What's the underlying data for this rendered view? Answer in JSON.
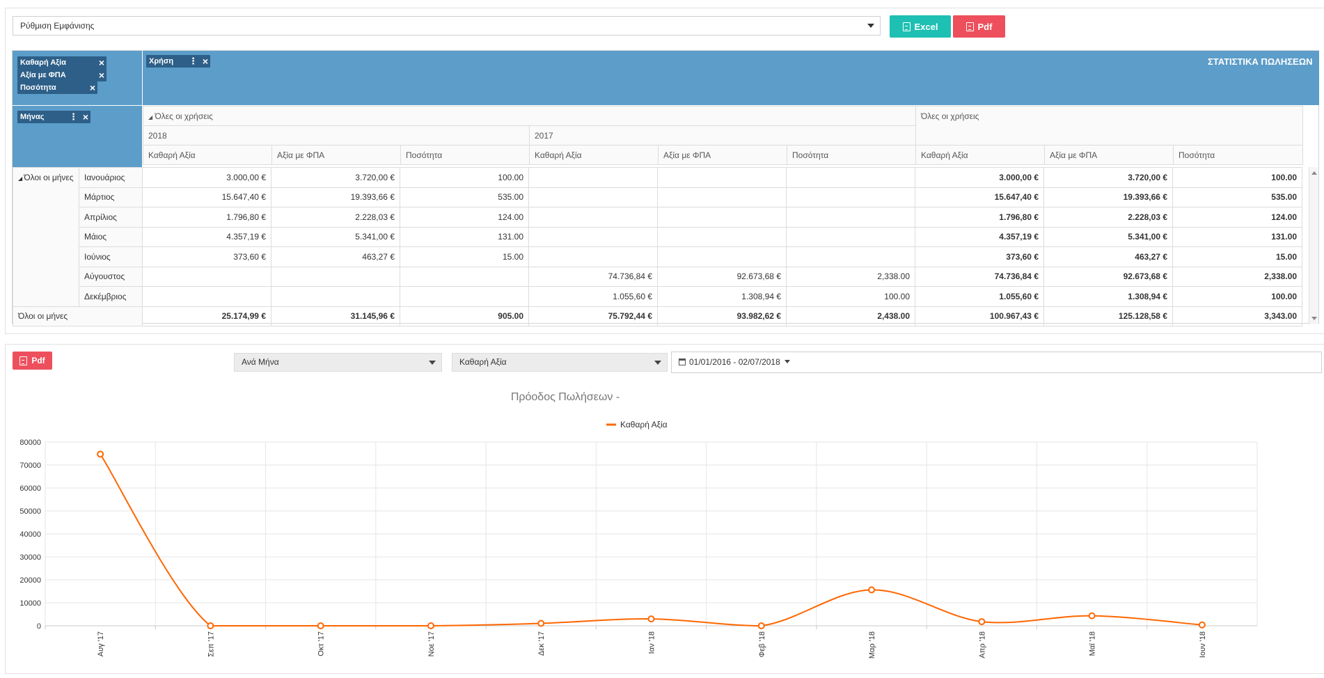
{
  "toolbar": {
    "layout_select": "Ρύθμιση Εμφάνισης",
    "excel_label": "Excel",
    "pdf_label": "Pdf"
  },
  "pivot": {
    "title": "ΣΤΑΤΙΣΤΙΚΑ ΠΩΛΗΣΕΩΝ",
    "data_fields": [
      "Καθαρή Αξία",
      "Αξία με ΦΠΑ",
      "Ποσότητα"
    ],
    "column_field": "Χρήση",
    "row_field": "Μήνας",
    "all_years": "Όλες οι χρήσεις",
    "years": [
      "2018",
      "2017"
    ],
    "measures": [
      "Καθαρή Αξία",
      "Αξία με ΦΠΑ",
      "Ποσότητα"
    ],
    "all_months": "Όλοι οι μήνες",
    "rows": [
      {
        "month": "Ιανουάριος",
        "cells": [
          "3.000,00 €",
          "3.720,00 €",
          "100.00",
          "",
          "",
          "",
          "3.000,00 €",
          "3.720,00 €",
          "100.00"
        ]
      },
      {
        "month": "Μάρτιος",
        "cells": [
          "15.647,40 €",
          "19.393,66 €",
          "535.00",
          "",
          "",
          "",
          "15.647,40 €",
          "19.393,66 €",
          "535.00"
        ]
      },
      {
        "month": "Απρίλιος",
        "cells": [
          "1.796,80 €",
          "2.228,03 €",
          "124.00",
          "",
          "",
          "",
          "1.796,80 €",
          "2.228,03 €",
          "124.00"
        ]
      },
      {
        "month": "Μάιος",
        "cells": [
          "4.357,19 €",
          "5.341,00 €",
          "131.00",
          "",
          "",
          "",
          "4.357,19 €",
          "5.341,00 €",
          "131.00"
        ]
      },
      {
        "month": "Ιούνιος",
        "cells": [
          "373,60 €",
          "463,27 €",
          "15.00",
          "",
          "",
          "",
          "373,60 €",
          "463,27 €",
          "15.00"
        ]
      },
      {
        "month": "Αύγουστος",
        "cells": [
          "",
          "",
          "",
          "74.736,84 €",
          "92.673,68 €",
          "2,338.00",
          "74.736,84 €",
          "92.673,68 €",
          "2,338.00"
        ]
      },
      {
        "month": "Δεκέμβριος",
        "cells": [
          "",
          "",
          "",
          "1.055,60 €",
          "1.308,94 €",
          "100.00",
          "1.055,60 €",
          "1.308,94 €",
          "100.00"
        ]
      }
    ],
    "totals": [
      "25.174,99 €",
      "31.145,96 €",
      "905.00",
      "75.792,44 €",
      "93.982,62 €",
      "2,438.00",
      "100.967,43 €",
      "125.128,58 €",
      "3,343.00"
    ]
  },
  "chart_controls": {
    "pdf_label": "Pdf",
    "group_by": "Ανά Μήνα",
    "metric": "Καθαρή Αξία",
    "date_range": "01/01/2016 - 02/07/2018"
  },
  "colors": {
    "header_blue": "#5c9dc9",
    "chip": "#2d5f88",
    "excel": "#1ec0b3",
    "pdf": "#ee4f5c",
    "series": "#ff6600"
  },
  "chart_data": {
    "type": "line",
    "title": "Πρόοδος Πωλήσεων -",
    "categories": [
      "Αυγ '17",
      "Σεπ '17",
      "Οκτ '17",
      "Νοε '17",
      "Δεκ '17",
      "Ιαν '18",
      "Φεβ '18",
      "Μαρ '18",
      "Απρ '18",
      "Μαϊ '18",
      "Ιουν '18"
    ],
    "series": [
      {
        "name": "Καθαρή Αξία",
        "values": [
          74736.84,
          0,
          0,
          0,
          1055.6,
          3000,
          0,
          15647.4,
          1796.8,
          4357.19,
          373.6
        ]
      }
    ],
    "yticks": [
      "80000",
      "70000",
      "60000",
      "50000",
      "40000",
      "30000",
      "20000",
      "10000",
      "0"
    ],
    "ylim": [
      0,
      80000
    ],
    "grid": true,
    "legend": "top-center"
  }
}
